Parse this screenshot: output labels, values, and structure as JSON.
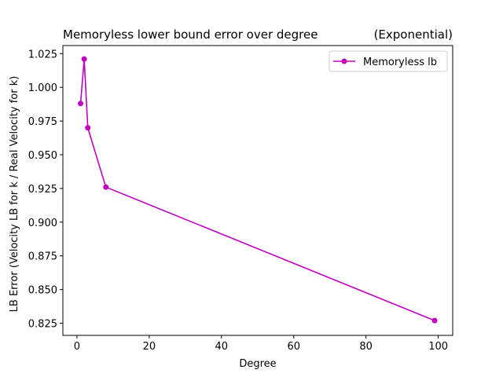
{
  "chart_data": {
    "type": "line",
    "title": "Memoryless lower bound error over degree",
    "subtitle": "(Exponential)",
    "xlabel": "Degree",
    "ylabel": "LB Error (Velocity LB for k / Real Velocity for k)",
    "xlim": [
      -3.9,
      104.0
    ],
    "ylim": [
      0.816,
      1.031
    ],
    "xticks": [
      0,
      20,
      40,
      60,
      80,
      100
    ],
    "xtick_labels": [
      "0",
      "20",
      "40",
      "60",
      "80",
      "100"
    ],
    "yticks": [
      0.825,
      0.85,
      0.875,
      0.9,
      0.925,
      0.95,
      0.975,
      1.0,
      1.025
    ],
    "ytick_labels": [
      "0.825",
      "0.850",
      "0.875",
      "0.900",
      "0.925",
      "0.950",
      "0.975",
      "1.000",
      "1.025"
    ],
    "grid": false,
    "legend_position": "upper right",
    "series": [
      {
        "name": "Memoryless lb",
        "color": "#bf00bf",
        "marker": "circle",
        "x": [
          1,
          2,
          3,
          8,
          99
        ],
        "y": [
          0.988,
          1.021,
          0.97,
          0.926,
          0.827
        ]
      }
    ]
  }
}
